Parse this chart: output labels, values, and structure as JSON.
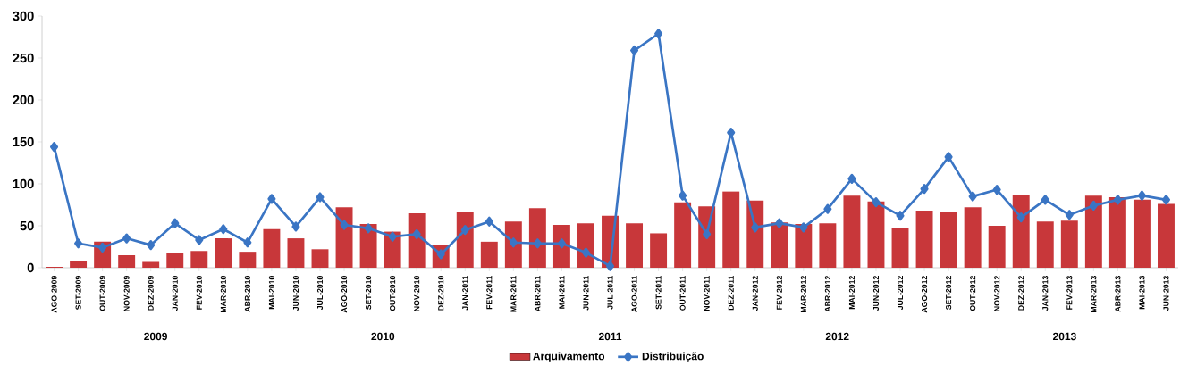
{
  "chart_data": {
    "type": "bar",
    "categories": [
      "AGO-2009",
      "SET-2009",
      "OUT-2009",
      "NOV-2009",
      "DEZ-2009",
      "JAN-2010",
      "FEV-2010",
      "MAR-2010",
      "ABR-2010",
      "MAI-2010",
      "JUN-2010",
      "JUL-2010",
      "AGO-2010",
      "SET-2010",
      "OUT-2010",
      "NOV-2010",
      "DEZ-2010",
      "JAN-2011",
      "FEV-2011",
      "MAR-2011",
      "ABR-2011",
      "MAI-2011",
      "JUN-2011",
      "JUL-2011",
      "AGO-2011",
      "SET-2011",
      "OUT-2011",
      "NOV-2011",
      "DEZ-2011",
      "JAN-2012",
      "FEV-2012",
      "MAR-2012",
      "ABR-2012",
      "MAI-2012",
      "JUN-2012",
      "JUL-2012",
      "AGO-2012",
      "SET-2012",
      "OUT-2012",
      "NOV-2012",
      "DEZ-2012",
      "JAN-2013",
      "FEV-2013",
      "MAR-2013",
      "ABR-2013",
      "MAI-2013",
      "JUN-2013"
    ],
    "series": [
      {
        "name": "Arquivamento",
        "color": "#c8373a",
        "values": [
          1,
          8,
          31,
          15,
          7,
          17,
          20,
          35,
          19,
          46,
          35,
          22,
          72,
          52,
          43,
          65,
          27,
          66,
          31,
          55,
          71,
          51,
          53,
          62,
          53,
          41,
          78,
          73,
          91,
          80,
          54,
          52,
          53,
          86,
          79,
          47,
          68,
          67,
          72,
          50,
          87,
          55,
          56,
          86,
          84,
          81,
          76
        ]
      },
      {
        "name": "Distribuição",
        "type": "line",
        "color": "#3a75c4",
        "marker": "diamond",
        "values": [
          144,
          29,
          24,
          35,
          27,
          53,
          33,
          46,
          30,
          82,
          49,
          84,
          51,
          47,
          37,
          40,
          16,
          45,
          55,
          30,
          29,
          29,
          18,
          2,
          259,
          279,
          86,
          40,
          161,
          48,
          53,
          48,
          70,
          106,
          78,
          62,
          94,
          132,
          85,
          93,
          60,
          81,
          63,
          74,
          81,
          86,
          81
        ]
      }
    ],
    "ylim": [
      0,
      300
    ],
    "yticks": [
      0,
      50,
      100,
      150,
      200,
      250,
      300
    ],
    "legend": "bottom",
    "annotations": [
      "2009",
      "2010",
      "2011",
      "2012",
      "2013"
    ]
  }
}
